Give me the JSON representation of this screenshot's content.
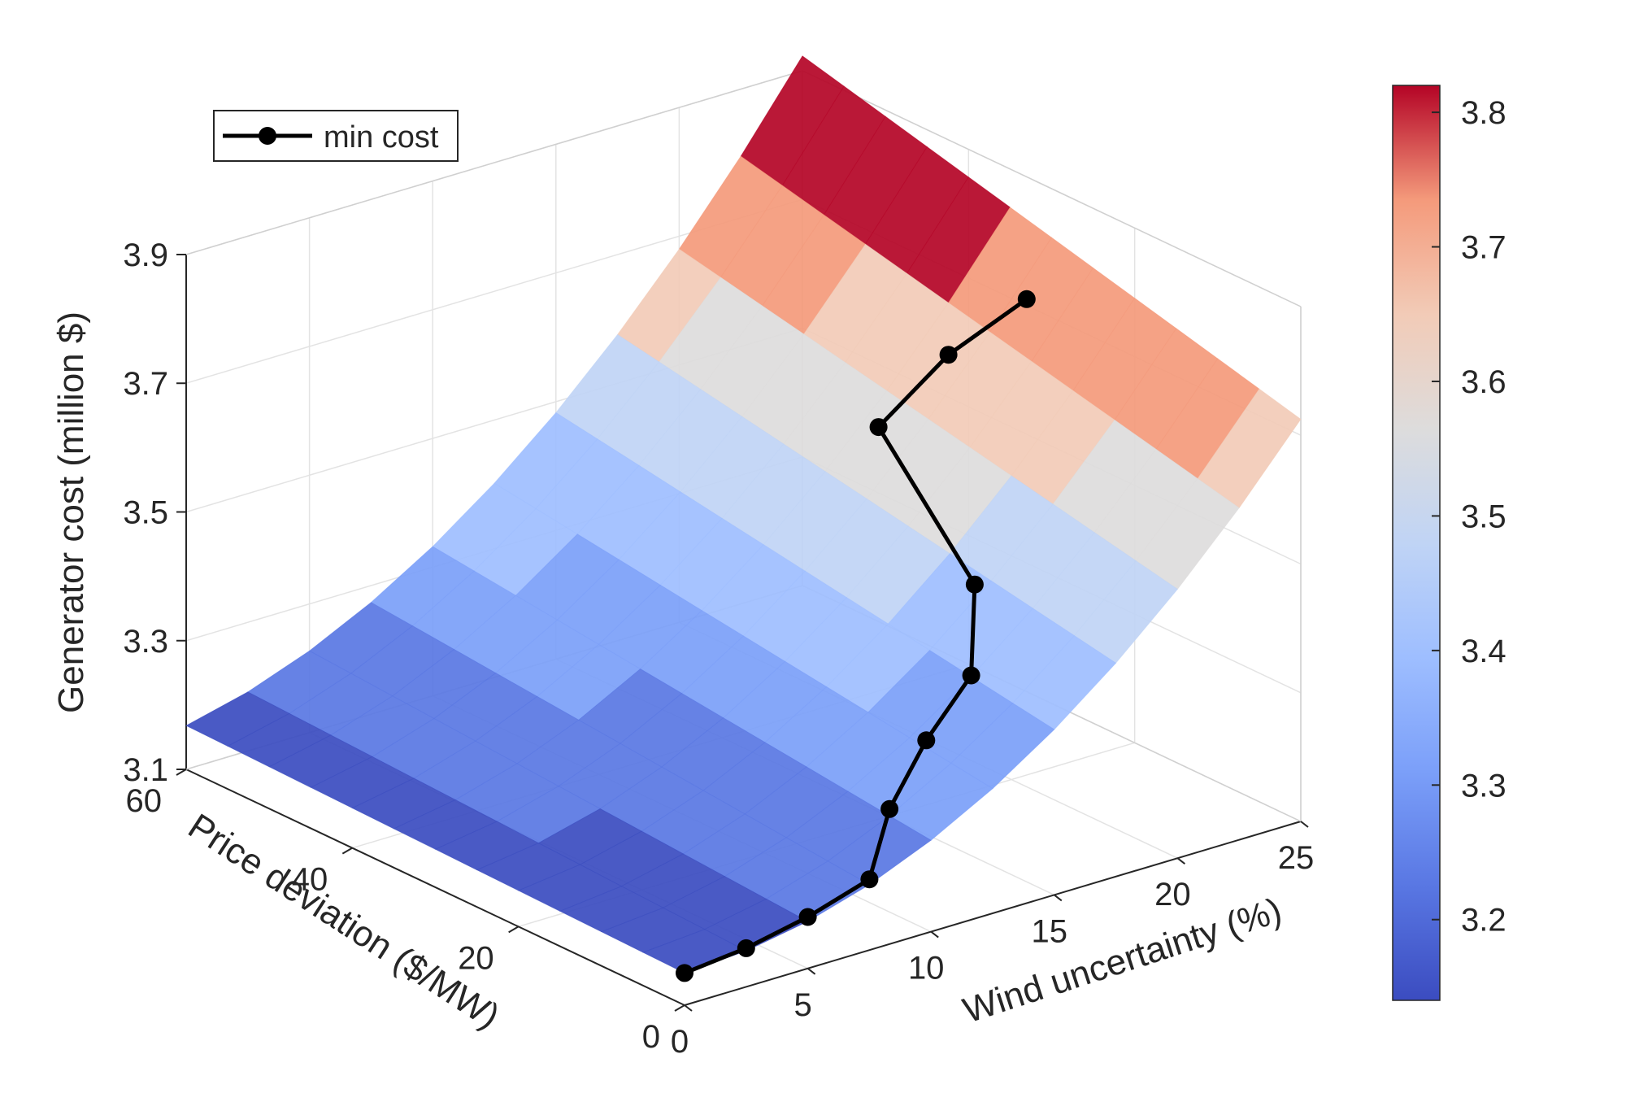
{
  "chart_data": {
    "type": "surface",
    "x_axis": {
      "label": "Wind uncertainty (%)",
      "range": [
        0,
        25
      ],
      "ticks": [
        0,
        5,
        10,
        15,
        20,
        25
      ]
    },
    "y_axis": {
      "label": "Price deviation ($/MW)",
      "range": [
        0,
        60
      ],
      "ticks": [
        0,
        20,
        40,
        60
      ]
    },
    "z_axis": {
      "label": "Generator cost (million $)",
      "range": [
        3.1,
        3.9
      ],
      "ticks": [
        3.1,
        3.3,
        3.5,
        3.7,
        3.9
      ]
    },
    "colorbar": {
      "range": [
        3.14,
        3.82
      ],
      "ticks": [
        3.2,
        3.3,
        3.4,
        3.5,
        3.6,
        3.7,
        3.8
      ],
      "colormap": "coolwarm",
      "low_color": "#3b4cc0",
      "mid_color": "#dddddd",
      "high_color": "#b40426"
    },
    "grid": true,
    "legend": {
      "position": "top-left",
      "entries": [
        {
          "label": "min cost",
          "color": "#000000",
          "marker": "filled-circle"
        }
      ]
    },
    "series": [
      {
        "name": "min cost",
        "type": "line3d",
        "points": [
          {
            "x": 0,
            "y": 0,
            "z": 3.15
          },
          {
            "x": 2.5,
            "y": 0,
            "z": 3.16
          },
          {
            "x": 5,
            "y": 0,
            "z": 3.18
          },
          {
            "x": 7.5,
            "y": 0,
            "z": 3.21
          },
          {
            "x": 10,
            "y": 5,
            "z": 3.26
          },
          {
            "x": 12.5,
            "y": 8,
            "z": 3.32
          },
          {
            "x": 15,
            "y": 10,
            "z": 3.38
          },
          {
            "x": 17.5,
            "y": 17,
            "z": 3.45
          },
          {
            "x": 20,
            "y": 36,
            "z": 3.55
          },
          {
            "x": 22.5,
            "y": 35,
            "z": 3.64
          },
          {
            "x": 25,
            "y": 33,
            "z": 3.71
          }
        ]
      }
    ]
  }
}
